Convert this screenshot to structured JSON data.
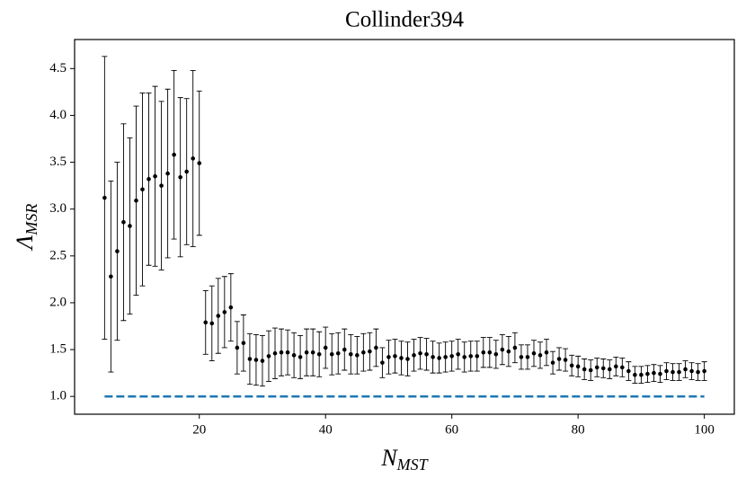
{
  "chart_data": {
    "type": "errorbar",
    "title": "Collinder394",
    "xlabel": "N",
    "xlabel_sub": "MST",
    "ylabel": "Λ",
    "ylabel_sub": "MSR",
    "xlim": [
      0.25,
      104.75
    ],
    "ylim": [
      0.81,
      4.81
    ],
    "xticks": [
      20,
      40,
      60,
      80,
      100
    ],
    "yticks": [
      {
        "value": 1,
        "label": "1.0"
      },
      1.5,
      {
        "value": 2,
        "label": "2.0"
      },
      2.5,
      {
        "value": 3,
        "label": "3.0"
      },
      3.5,
      {
        "value": 4,
        "label": "4.0"
      },
      4.5
    ],
    "series": [
      {
        "color": "#000000",
        "x": [
          5,
          6,
          7,
          8,
          9,
          10,
          11,
          12,
          13,
          14,
          15,
          16,
          17,
          18,
          19,
          20,
          21,
          22,
          23,
          24,
          25,
          26,
          27,
          28,
          29,
          30,
          31,
          32,
          33,
          34,
          35,
          36,
          37,
          38,
          39,
          40,
          41,
          42,
          43,
          44,
          45,
          46,
          47,
          48,
          49,
          50,
          51,
          52,
          53,
          54,
          55,
          56,
          57,
          58,
          59,
          60,
          61,
          62,
          63,
          64,
          65,
          66,
          67,
          68,
          69,
          70,
          71,
          72,
          73,
          74,
          75,
          76,
          77,
          78,
          79,
          80,
          81,
          82,
          83,
          84,
          85,
          86,
          87,
          88,
          89,
          90,
          91,
          92,
          93,
          94,
          95,
          96,
          97,
          98,
          99,
          100
        ],
        "values": [
          3.12,
          2.28,
          2.55,
          2.86,
          2.82,
          3.09,
          3.21,
          3.32,
          3.35,
          3.25,
          3.38,
          3.58,
          3.34,
          3.4,
          3.54,
          3.49,
          1.79,
          1.78,
          1.86,
          1.9,
          1.95,
          1.52,
          1.57,
          1.4,
          1.39,
          1.38,
          1.43,
          1.46,
          1.47,
          1.47,
          1.44,
          1.42,
          1.47,
          1.47,
          1.45,
          1.52,
          1.45,
          1.46,
          1.5,
          1.45,
          1.44,
          1.47,
          1.48,
          1.52,
          1.36,
          1.42,
          1.43,
          1.41,
          1.4,
          1.44,
          1.46,
          1.45,
          1.42,
          1.41,
          1.42,
          1.43,
          1.45,
          1.42,
          1.43,
          1.43,
          1.47,
          1.47,
          1.45,
          1.5,
          1.48,
          1.52,
          1.42,
          1.42,
          1.46,
          1.44,
          1.47,
          1.36,
          1.4,
          1.39,
          1.33,
          1.32,
          1.29,
          1.28,
          1.31,
          1.3,
          1.29,
          1.32,
          1.31,
          1.27,
          1.23,
          1.23,
          1.24,
          1.25,
          1.24,
          1.27,
          1.26,
          1.26,
          1.29,
          1.27,
          1.26,
          1.27
        ],
        "errors": [
          1.51,
          1.02,
          0.95,
          1.05,
          0.94,
          1.01,
          1.03,
          0.92,
          0.96,
          0.9,
          0.9,
          0.9,
          0.85,
          0.78,
          0.94,
          0.77,
          0.34,
          0.4,
          0.4,
          0.38,
          0.36,
          0.28,
          0.3,
          0.27,
          0.27,
          0.27,
          0.27,
          0.27,
          0.25,
          0.24,
          0.24,
          0.23,
          0.25,
          0.25,
          0.24,
          0.22,
          0.22,
          0.22,
          0.22,
          0.21,
          0.2,
          0.2,
          0.2,
          0.2,
          0.16,
          0.18,
          0.18,
          0.18,
          0.18,
          0.17,
          0.17,
          0.17,
          0.17,
          0.16,
          0.16,
          0.16,
          0.16,
          0.16,
          0.16,
          0.16,
          0.16,
          0.16,
          0.15,
          0.16,
          0.16,
          0.16,
          0.13,
          0.13,
          0.14,
          0.14,
          0.14,
          0.12,
          0.12,
          0.12,
          0.11,
          0.11,
          0.11,
          0.11,
          0.1,
          0.1,
          0.1,
          0.1,
          0.1,
          0.1,
          0.09,
          0.09,
          0.09,
          0.09,
          0.09,
          0.09,
          0.09,
          0.09,
          0.09,
          0.09,
          0.09,
          0.1
        ]
      }
    ],
    "reference": {
      "x": [
        5,
        100
      ],
      "values": [
        1,
        1
      ],
      "color": "#1f77b4"
    }
  }
}
